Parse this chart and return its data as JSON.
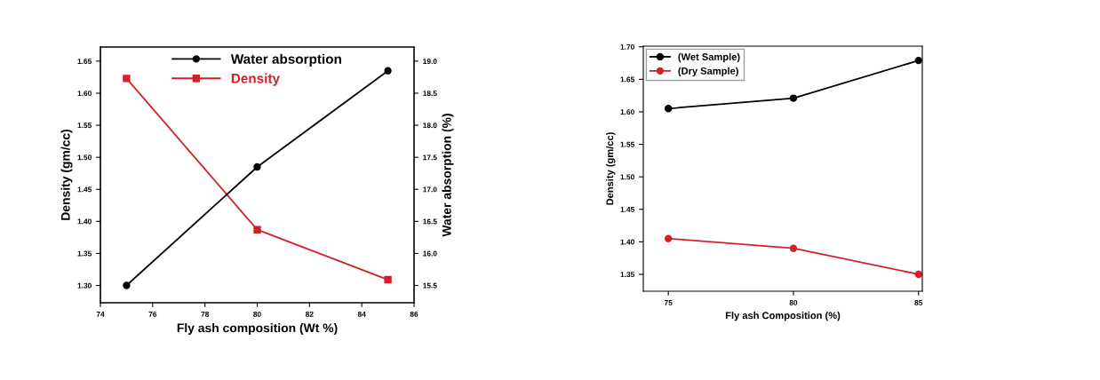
{
  "chart_data": [
    {
      "type": "line",
      "xlabel": "Fly ash composition (Wt %)",
      "ylabel": "Density (gm/cc)",
      "y2label": "Water absorption (%)",
      "x": [
        75,
        80,
        85
      ],
      "xlim": [
        74,
        86
      ],
      "xticks": [
        74,
        76,
        78,
        80,
        82,
        84,
        86
      ],
      "ylim": [
        1.273,
        1.672
      ],
      "yticks": [
        {
          "value": 1.3,
          "label": "1.30"
        },
        {
          "value": 1.35,
          "label": "1.35"
        },
        {
          "value": 1.4,
          "label": "1.40"
        },
        {
          "value": 1.45,
          "label": "1.45"
        },
        {
          "value": 1.5,
          "label": "1.50"
        },
        {
          "value": 1.55,
          "label": "1.55"
        },
        {
          "value": 1.6,
          "label": "1.60"
        },
        {
          "value": 1.65,
          "label": "1.65"
        }
      ],
      "y2lim": [
        15.23,
        19.22
      ],
      "y2ticks": [
        15.5,
        {
          "value": 16,
          "label": "16.0"
        },
        16.5,
        {
          "value": 17,
          "label": "17.0"
        },
        17.5,
        {
          "value": 18,
          "label": "18.0"
        },
        18.5,
        {
          "value": 19,
          "label": "19.0"
        }
      ],
      "legend": "top",
      "grid": false,
      "series": [
        {
          "name": "Water absorption",
          "color": "#000000",
          "axis": "y2",
          "marker": "circle",
          "values": [
            15.5,
            17.35,
            18.85
          ]
        },
        {
          "name": "Density",
          "color": "#d0202a",
          "marker": "square",
          "values": [
            1.623,
            1.387,
            1.309
          ]
        }
      ]
    },
    {
      "type": "line",
      "xlabel": "Fly ash Composition (%)",
      "ylabel": "Density (gm/cc)",
      "x": [
        75,
        80,
        85
      ],
      "xlim": [
        74,
        85.15
      ],
      "xticks": [
        75,
        80,
        85
      ],
      "ylim": [
        1.324,
        1.701
      ],
      "yticks": [
        {
          "value": 1.35,
          "label": "1.35"
        },
        {
          "value": 1.4,
          "label": "1.40"
        },
        {
          "value": 1.45,
          "label": "1.45"
        },
        {
          "value": 1.5,
          "label": "1.50"
        },
        {
          "value": 1.55,
          "label": "1.55"
        },
        {
          "value": 1.6,
          "label": "1.60"
        },
        {
          "value": 1.65,
          "label": "1.65"
        },
        {
          "value": 1.7,
          "label": "1.70"
        }
      ],
      "legend": "top left",
      "grid": false,
      "series": [
        {
          "name": "(Wet Sample)",
          "color": "#000000",
          "marker": "circle",
          "values": [
            1.605,
            1.621,
            1.679
          ]
        },
        {
          "name": "(Dry Sample)",
          "color": "#d0202a",
          "marker": "circle",
          "values": [
            1.405,
            1.39,
            1.35
          ]
        }
      ]
    }
  ]
}
